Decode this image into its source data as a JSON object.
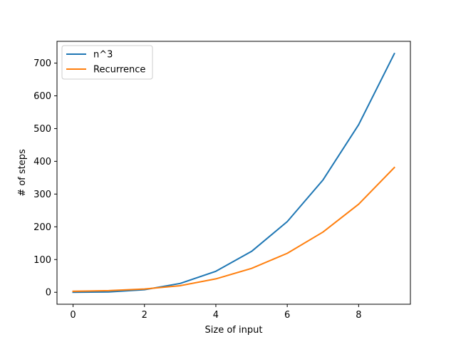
{
  "chart_data": {
    "type": "line",
    "title": "",
    "xlabel": "Size of input",
    "ylabel": "# of steps",
    "x": [
      0,
      1,
      2,
      3,
      4,
      5,
      6,
      7,
      8,
      9
    ],
    "xlim": [
      -0.45,
      9.45
    ],
    "ylim": [
      -36.5,
      766.5
    ],
    "xticks": [
      0,
      2,
      4,
      6,
      8
    ],
    "yticks": [
      0,
      100,
      200,
      300,
      400,
      500,
      600,
      700
    ],
    "grid": false,
    "legend_position": "top-left",
    "series": [
      {
        "name": "n^3",
        "color": "#1f77b4",
        "values": [
          0,
          1,
          8,
          27,
          64,
          125,
          216,
          343,
          512,
          729
        ]
      },
      {
        "name": "Recurrence",
        "color": "#ff7f0e",
        "values": [
          3,
          5,
          10,
          20,
          41,
          73,
          119,
          184,
          269,
          381
        ]
      }
    ]
  }
}
